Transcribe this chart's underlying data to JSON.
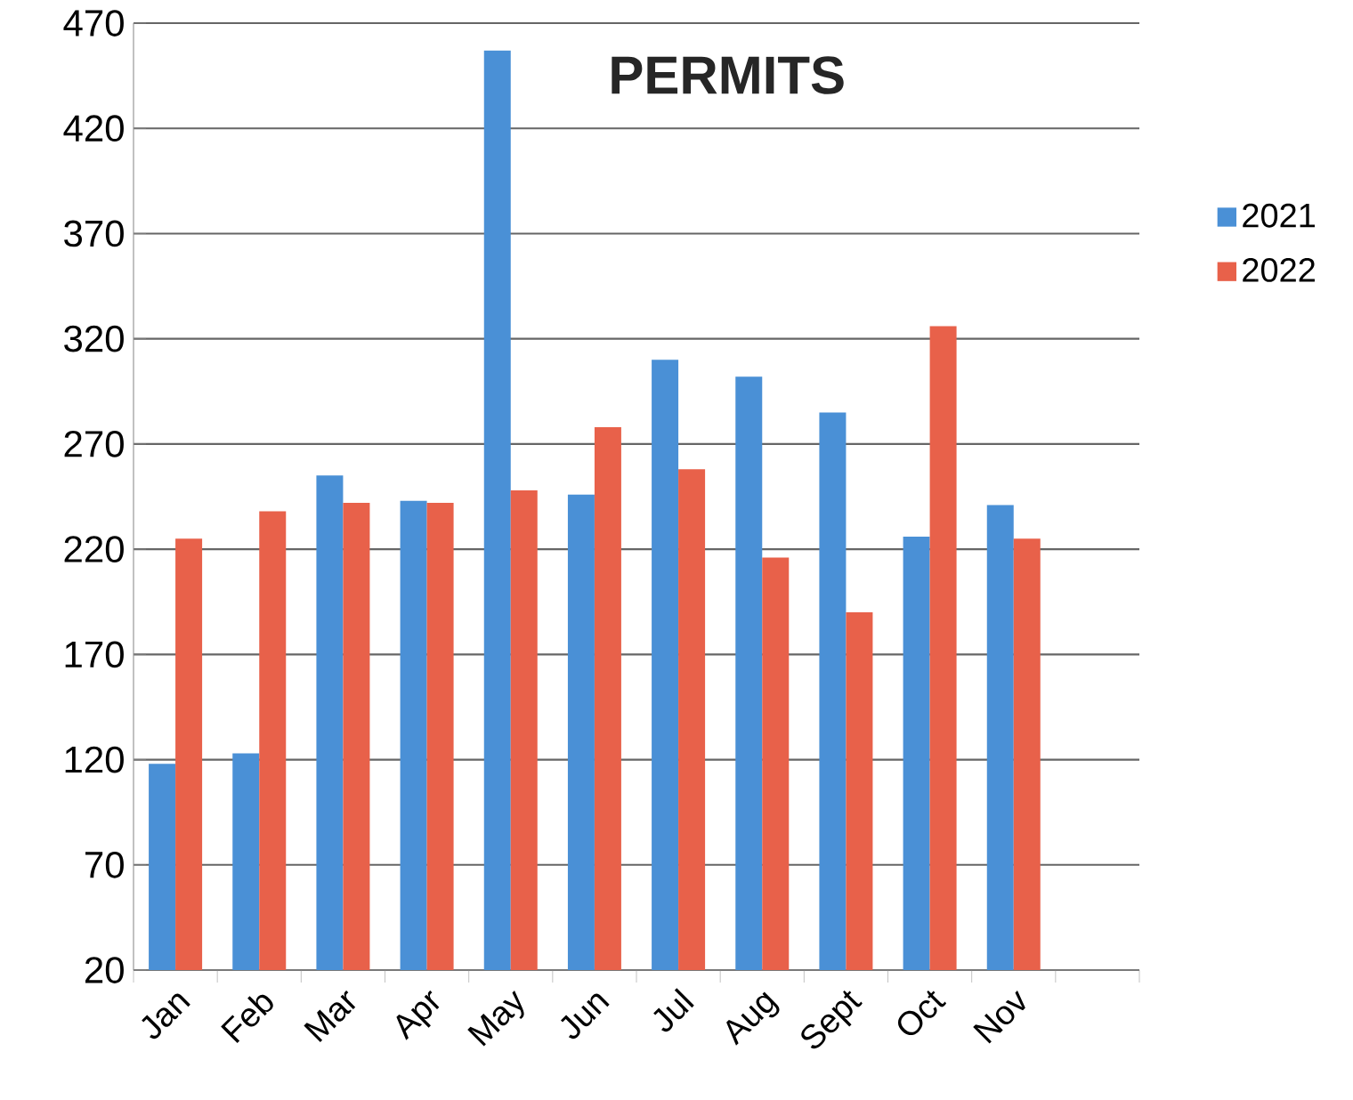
{
  "chart_data": {
    "type": "bar",
    "title": "PERMITS",
    "categories": [
      "Jan",
      "Feb",
      "Mar",
      "Apr",
      "May",
      "Jun",
      "Jul",
      "Aug",
      "Sept",
      "Oct",
      "Nov",
      null
    ],
    "series": [
      {
        "name": "2021",
        "color": "#4a90d6",
        "values": [
          118,
          123,
          255,
          243,
          457,
          246,
          310,
          302,
          285,
          226,
          241,
          null
        ]
      },
      {
        "name": "2022",
        "color": "#e8614a",
        "values": [
          225,
          238,
          242,
          242,
          248,
          278,
          258,
          216,
          190,
          326,
          225,
          null
        ]
      }
    ],
    "ylim": [
      20,
      470
    ],
    "yticks": [
      20,
      70,
      120,
      170,
      220,
      270,
      320,
      370,
      420,
      470
    ],
    "grid": "y",
    "legend": "right"
  }
}
